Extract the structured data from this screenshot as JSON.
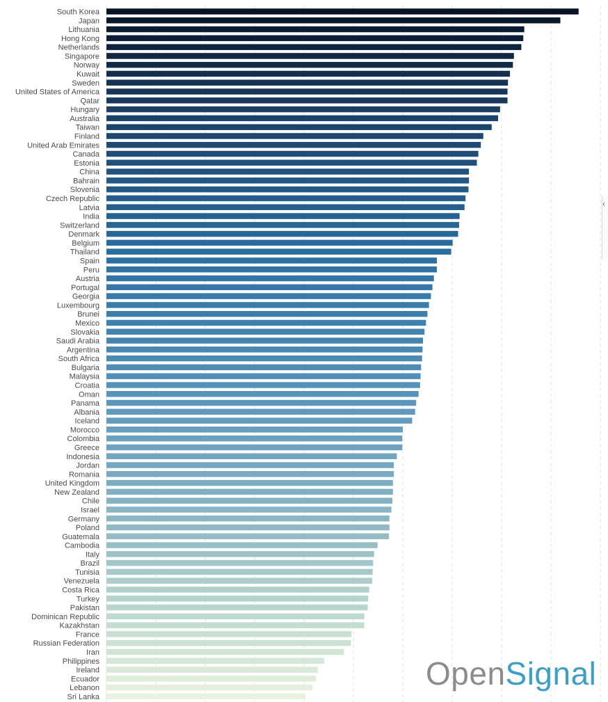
{
  "chart_data": {
    "type": "bar",
    "orientation": "horizontal",
    "title": "",
    "xlabel": "",
    "ylabel": "",
    "xlim": [
      0,
      10
    ],
    "grid": true,
    "color_range": [
      "#0b1a2e",
      "#e9f2de"
    ],
    "categories": [
      "South Korea",
      "Japan",
      "Lithuania",
      "Hong Kong",
      "Netherlands",
      "Singapore",
      "Norway",
      "Kuwait",
      "Sweden",
      "United States of America",
      "Qatar",
      "Hungary",
      "Australia",
      "Taiwan",
      "Finland",
      "United Arab Emirates",
      "Canada",
      "Estonia",
      "China",
      "Bahrain",
      "Slovenia",
      "Czech Republic",
      "Latvia",
      "India",
      "Switzerland",
      "Denmark",
      "Belgium",
      "Thailand",
      "Spain",
      "Peru",
      "Austria",
      "Portugal",
      "Georgia",
      "Luxembourg",
      "Brunei",
      "Mexico",
      "Slovakia",
      "Saudi Arabia",
      "Argentina",
      "South Africa",
      "Bulgaria",
      "Malaysia",
      "Croatia",
      "Oman",
      "Panama",
      "Albania",
      "Iceland",
      "Morocco",
      "Colombia",
      "Greece",
      "Indonesia",
      "Jordan",
      "Romania",
      "United Kingdom",
      "New Zealand",
      "Chile",
      "Israel",
      "Germany",
      "Poland",
      "Guatemala",
      "Cambodia",
      "Italy",
      "Brazil",
      "Tunisia",
      "Venezuela",
      "Costa Rica",
      "Turkey",
      "Pakistan",
      "Dominican Republic",
      "Kazakhstan",
      "France",
      "Russian Federation",
      "Iran",
      "Philippines",
      "Ireland",
      "Ecuador",
      "Lebanon",
      "Sri Lanka"
    ],
    "values": [
      9.56,
      9.19,
      8.46,
      8.44,
      8.4,
      8.25,
      8.23,
      8.17,
      8.13,
      8.12,
      8.12,
      7.97,
      7.93,
      7.8,
      7.63,
      7.58,
      7.53,
      7.5,
      7.34,
      7.34,
      7.33,
      7.27,
      7.25,
      7.15,
      7.14,
      7.12,
      7.01,
      6.98,
      6.69,
      6.69,
      6.63,
      6.6,
      6.57,
      6.53,
      6.5,
      6.47,
      6.44,
      6.41,
      6.4,
      6.39,
      6.37,
      6.36,
      6.35,
      6.32,
      6.27,
      6.25,
      6.19,
      6.0,
      5.99,
      5.99,
      5.88,
      5.82,
      5.82,
      5.8,
      5.8,
      5.79,
      5.77,
      5.73,
      5.73,
      5.72,
      5.49,
      5.42,
      5.4,
      5.39,
      5.38,
      5.32,
      5.3,
      5.29,
      5.22,
      5.22,
      4.96,
      4.95,
      4.81,
      4.41,
      4.28,
      4.24,
      4.17,
      4.03
    ]
  },
  "branding": {
    "part1": "Open",
    "part2": "Signal",
    "color_part1": "#8c8c8c",
    "color_part2": "#3d9fc3"
  },
  "edge_widget": {
    "icon": "chevron-left-icon"
  }
}
